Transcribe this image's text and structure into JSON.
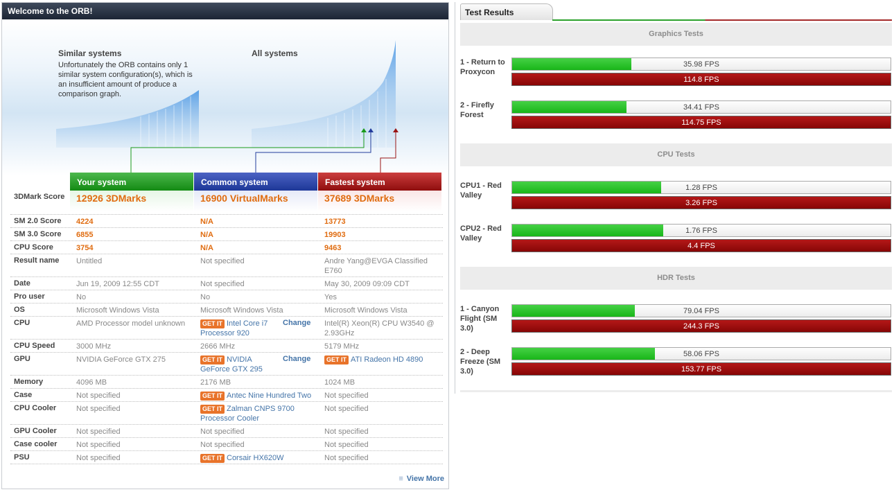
{
  "left": {
    "header": "Welcome to the ORB!",
    "similar_title": "Similar systems",
    "similar_text": "Unfortunately the ORB contains only 1 similar system configuration(s), which is an insufficient amount of produce a comparison graph.",
    "all_title": "All systems",
    "columns": [
      "Your system",
      "Common system",
      "Fastest system"
    ],
    "rows": [
      {
        "label": "3DMark Score",
        "your": "12926 3DMarks",
        "common": "16900 VirtualMarks",
        "fastest": "37689 3DMarks"
      },
      {
        "label": "SM 2.0 Score",
        "your": "4224",
        "common": "N/A",
        "fastest": "13773"
      },
      {
        "label": "SM 3.0 Score",
        "your": "6855",
        "common": "N/A",
        "fastest": "19903"
      },
      {
        "label": "CPU Score",
        "your": "3754",
        "common": "N/A",
        "fastest": "9463"
      },
      {
        "label": "Result name",
        "your": "Untitled",
        "common": "Not specified",
        "fastest": "Andre Yang@EVGA Classified E760"
      },
      {
        "label": "Date",
        "your": "Jun 19, 2009 12:55 CDT",
        "common": "Not specified",
        "fastest": "May 30, 2009 09:09 CDT"
      },
      {
        "label": "Pro user",
        "your": "No",
        "common": "No",
        "fastest": "Yes"
      },
      {
        "label": "OS",
        "your": "Microsoft Windows Vista",
        "common": "Microsoft Windows Vista",
        "fastest": "Microsoft Windows Vista"
      },
      {
        "label": "CPU",
        "your": "AMD Processor model unknown",
        "common": "Intel Core i7 Processor 920",
        "fastest": "Intel(R) Xeon(R) CPU W3540 @ 2.93GHz"
      },
      {
        "label": "CPU Speed",
        "your": "3000 MHz",
        "common": "2666 MHz",
        "fastest": "5179 MHz"
      },
      {
        "label": "GPU",
        "your": "NVIDIA GeForce GTX 275",
        "common": "NVIDIA GeForce GTX 295",
        "fastest": "ATI Radeon HD 4890"
      },
      {
        "label": "Memory",
        "your": "4096 MB",
        "common": "2176 MB",
        "fastest": "1024 MB"
      },
      {
        "label": "Case",
        "your": "Not specified",
        "common": "Antec Nine Hundred Two",
        "fastest": "Not specified"
      },
      {
        "label": "CPU Cooler",
        "your": "Not specified",
        "common": "Zalman CNPS 9700 Processor Cooler",
        "fastest": "Not specified"
      },
      {
        "label": "GPU Cooler",
        "your": "Not specified",
        "common": "Not specified",
        "fastest": "Not specified"
      },
      {
        "label": "Case cooler",
        "your": "Not specified",
        "common": "Not specified",
        "fastest": "Not specified"
      },
      {
        "label": "PSU",
        "your": "Not specified",
        "common": "Corsair HX620W",
        "fastest": "Not specified"
      }
    ],
    "getit": "GET IT",
    "change": "Change",
    "view_more": "View More"
  },
  "right": {
    "tab": "Test Results",
    "sections": [
      {
        "title": "Graphics Tests",
        "tests": [
          {
            "name": "1 - Return to Proxycon",
            "yours": "35.98 FPS",
            "yours_fraction": 0.315,
            "best": "114.8 FPS"
          },
          {
            "name": "2 - Firefly Forest",
            "yours": "34.41 FPS",
            "yours_fraction": 0.302,
            "best": "114.75 FPS"
          }
        ]
      },
      {
        "title": "CPU Tests",
        "tests": [
          {
            "name": "CPU1 - Red Valley",
            "yours": "1.28 FPS",
            "yours_fraction": 0.393,
            "best": "3.26 FPS"
          },
          {
            "name": "CPU2 - Red Valley",
            "yours": "1.76 FPS",
            "yours_fraction": 0.4,
            "best": "4.4 FPS"
          }
        ]
      },
      {
        "title": "HDR Tests",
        "tests": [
          {
            "name": "1 - Canyon Flight (SM 3.0)",
            "yours": "79.04 FPS",
            "yours_fraction": 0.324,
            "best": "244.3 FPS"
          },
          {
            "name": "2 - Deep Freeze (SM 3.0)",
            "yours": "58.06 FPS",
            "yours_fraction": 0.378,
            "best": "153.77 FPS"
          }
        ]
      }
    ]
  },
  "colors": {
    "green": "#19b619",
    "blue": "#1d3797",
    "red": "#8e0d0d",
    "orange": "#e06c10",
    "link": "#4474a8"
  }
}
